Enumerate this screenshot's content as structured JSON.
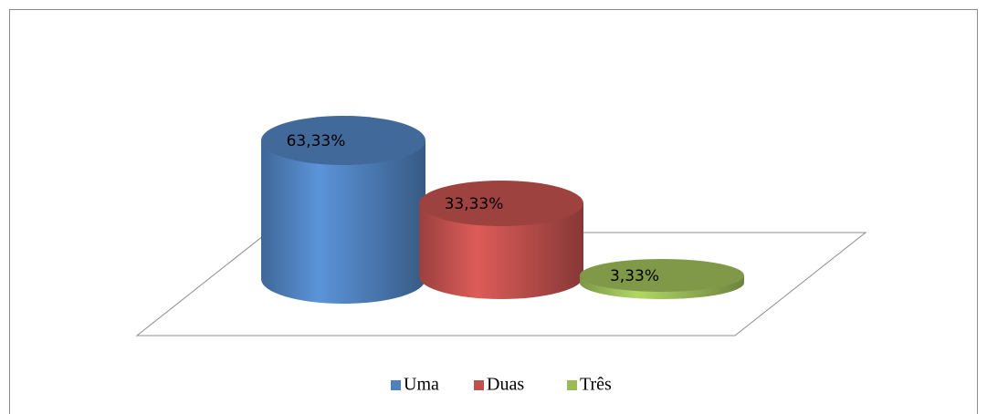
{
  "chart_data": {
    "type": "bar",
    "series": [
      {
        "name": "Uma",
        "color": "#4f81bd",
        "values": [
          63.33
        ],
        "value_labels": [
          "63,33%"
        ]
      },
      {
        "name": "Duas",
        "color": "#c0504d",
        "values": [
          33.33
        ],
        "value_labels": [
          "33,33%"
        ]
      },
      {
        "name": "Três",
        "color": "#9bbb59",
        "values": [
          3.33
        ],
        "value_labels": [
          "3,33%"
        ]
      }
    ],
    "legend": "bottom"
  }
}
